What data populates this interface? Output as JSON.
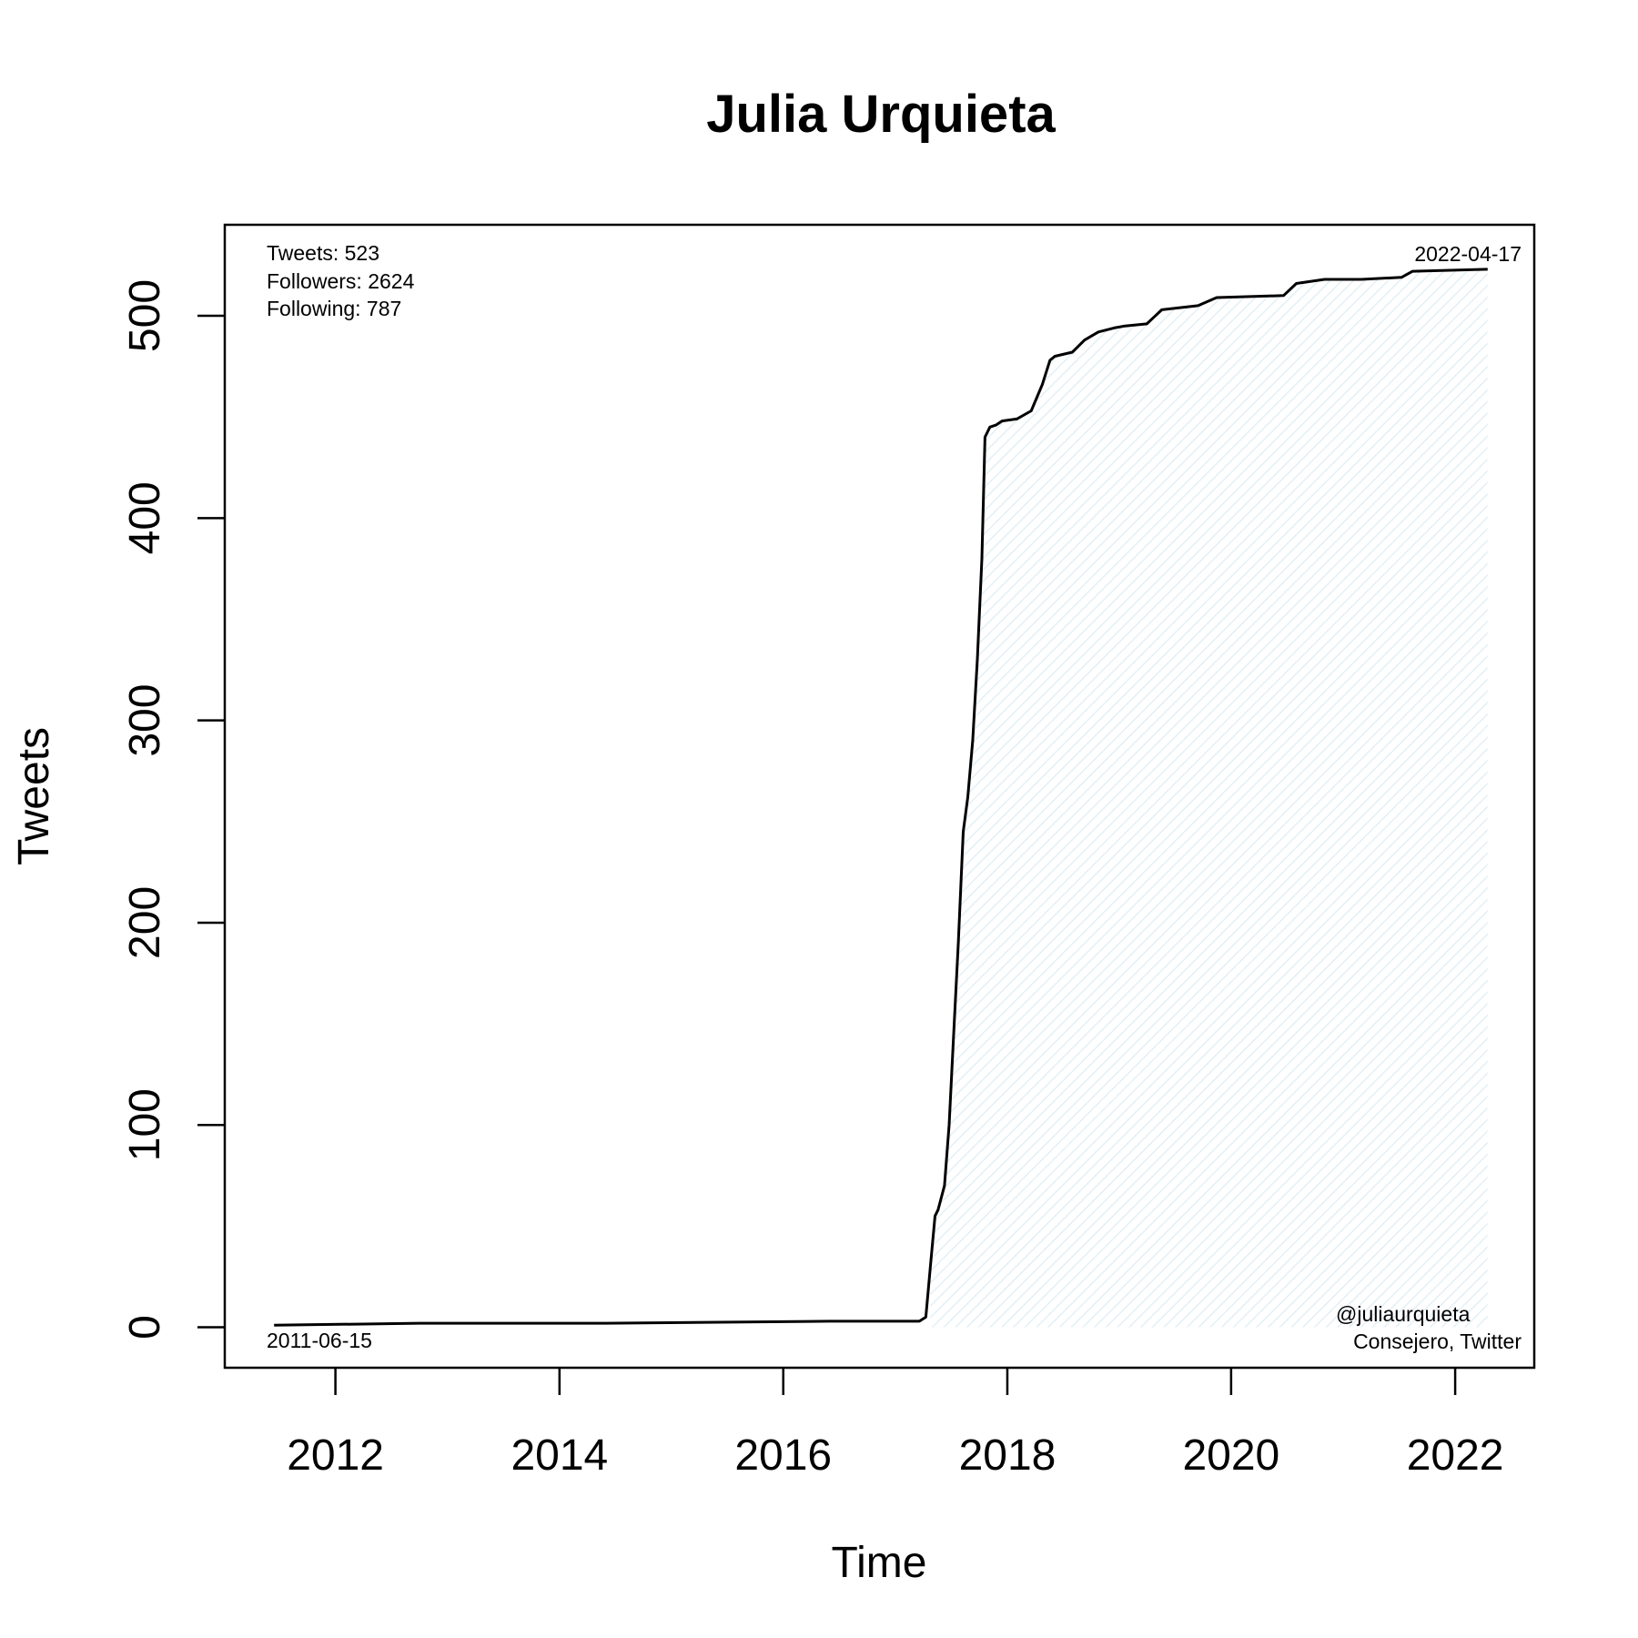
{
  "chart_data": {
    "type": "area",
    "title": "Julia Urquieta",
    "xlabel": "Time",
    "ylabel": "Tweets",
    "xlim": [
      "2011-01-05",
      "2022-09-16"
    ],
    "ylim": [
      -20,
      545
    ],
    "x_ticks": [
      "2012",
      "2014",
      "2016",
      "2018",
      "2020",
      "2022"
    ],
    "y_ticks": [
      "0",
      "100",
      "200",
      "300",
      "400",
      "500"
    ],
    "grid": false,
    "fill_color": "#e8f4f8",
    "line_color": "#000000",
    "annotations": {
      "tweets": "Tweets: 523",
      "followers": "Followers: 2624",
      "following": "Following: 787",
      "start_date": "2011-06-15",
      "end_date": "2022-04-17",
      "handle": "@juliaurquieta",
      "description": "Consejero, Twitter"
    },
    "series": [
      {
        "x": [
          "2011-06-15",
          "2012-10-01",
          "2014-06-01",
          "2016-06-01",
          "2017-03-20",
          "2017-04-10",
          "2017-04-25",
          "2017-05-10",
          "2017-05-20",
          "2017-06-10",
          "2017-06-25",
          "2017-07-10",
          "2017-07-25",
          "2017-08-10",
          "2017-08-25",
          "2017-09-10",
          "2017-09-25",
          "2017-10-10",
          "2017-10-20",
          "2017-11-05",
          "2017-11-25",
          "2017-12-15",
          "2018-02-01",
          "2018-03-20",
          "2018-04-25",
          "2018-05-20",
          "2018-06-05",
          "2018-08-01",
          "2018-09-10",
          "2018-10-25",
          "2018-12-15",
          "2019-01-20",
          "2019-04-01",
          "2019-05-20",
          "2019-09-15",
          "2019-11-15",
          "2020-06-20",
          "2020-08-01",
          "2020-11-01",
          "2021-03-01",
          "2021-07-10",
          "2021-08-15",
          "2022-04-17"
        ],
        "y": [
          1,
          2,
          2,
          3,
          3,
          5,
          30,
          55,
          58,
          70,
          100,
          145,
          190,
          245,
          262,
          290,
          330,
          380,
          440,
          445,
          446,
          448,
          449,
          453,
          466,
          478,
          480,
          482,
          488,
          492,
          494,
          495,
          496,
          503,
          505,
          509,
          510,
          516,
          518,
          518,
          519,
          522,
          523
        ]
      }
    ]
  }
}
